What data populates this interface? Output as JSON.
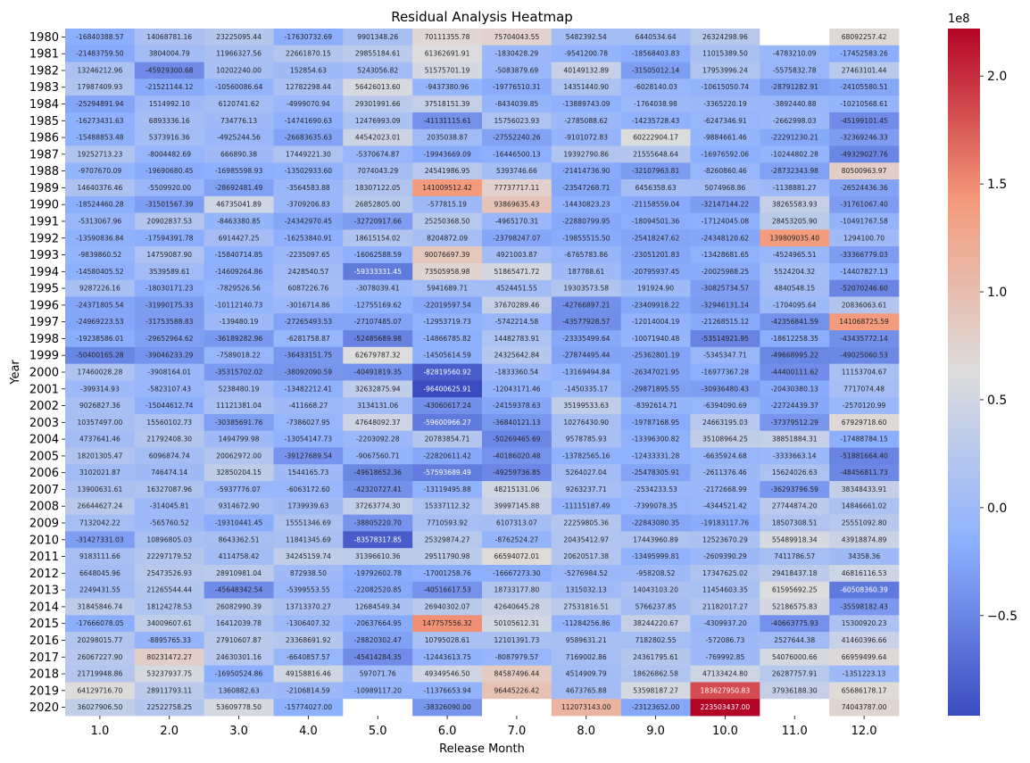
{
  "chart_data": {
    "type": "heatmap",
    "title": "Residual Analysis Heatmap",
    "xlabel": "Release Month",
    "ylabel": "Year",
    "colormap": "coolwarm",
    "color_low": "#3b4cc0",
    "color_mid": "#dddddd",
    "color_high": "#b40426",
    "missing_color": "#ffffff",
    "colorbar": {
      "multiplier": "1e8",
      "vmin": -0.9640062591,
      "vmax": 2.22,
      "ticks": [
        -0.5,
        0.0,
        0.5,
        1.0,
        1.5,
        2.0
      ],
      "tick_labels": [
        "−0.5",
        "0.0",
        "0.5",
        "1.0",
        "1.5",
        "2.0"
      ]
    },
    "columns": [
      "1.0",
      "2.0",
      "3.0",
      "4.0",
      "5.0",
      "6.0",
      "7.0",
      "8.0",
      "9.0",
      "10.0",
      "11.0",
      "12.0"
    ],
    "rows": [
      "1980",
      "1981",
      "1982",
      "1983",
      "1984",
      "1985",
      "1986",
      "1987",
      "1988",
      "1989",
      "1990",
      "1991",
      "1992",
      "1993",
      "1994",
      "1995",
      "1996",
      "1997",
      "1998",
      "1999",
      "2000",
      "2001",
      "2002",
      "2003",
      "2004",
      "2005",
      "2006",
      "2007",
      "2008",
      "2009",
      "2010",
      "2011",
      "2012",
      "2013",
      "2014",
      "2015",
      "2016",
      "2017",
      "2018",
      "2019",
      "2020"
    ],
    "values": [
      [
        -16840388.57,
        14068781.16,
        23225095.44,
        -17630732.69,
        9901348.26,
        70111355.78,
        75704043.55,
        5482392.54,
        6440534.64,
        26324298.96,
        null,
        68092257.42
      ],
      [
        -21483759.5,
        3804004.79,
        11966327.56,
        22661870.15,
        29855184.61,
        61362691.91,
        -1830428.29,
        -9541200.78,
        -18568403.83,
        11015389.5,
        -4783210.09,
        -17452583.26
      ],
      [
        13246212.96,
        -45929300.68,
        10202240.0,
        152854.63,
        5243056.82,
        51575701.19,
        -5083879.69,
        40149132.89,
        -31505012.14,
        17953996.24,
        -5575832.78,
        27463101.44
      ],
      [
        17987409.93,
        -21521144.12,
        -10560086.64,
        12782298.44,
        56426013.6,
        -9437380.96,
        -19776510.31,
        14351440.9,
        -6028140.03,
        -10615050.74,
        -28791282.91,
        -24105580.51
      ],
      [
        -25294891.94,
        1514992.1,
        6120741.62,
        -4999070.94,
        29301991.66,
        37518151.39,
        -8434039.85,
        -13889743.09,
        -1764038.98,
        -3365220.19,
        -3892440.88,
        -10210568.61
      ],
      [
        -16273431.63,
        6893336.16,
        734776.13,
        -14741690.63,
        12476993.09,
        -41131115.61,
        15756023.93,
        -2785088.62,
        -14235728.43,
        -6247346.91,
        -2662998.03,
        -45199101.45
      ],
      [
        -15488853.48,
        5373916.36,
        -4925244.56,
        -26683635.63,
        44542023.01,
        2035038.87,
        -27552240.26,
        -9101072.83,
        60222904.17,
        -9884661.46,
        -22291230.21,
        -32369246.33
      ],
      [
        19252713.23,
        -8004482.69,
        666890.38,
        17449221.3,
        -5370674.87,
        -19943669.09,
        -16446500.13,
        19392790.86,
        21555648.64,
        -16976592.06,
        -10244802.28,
        -49329027.76
      ],
      [
        -9707670.09,
        -19690680.45,
        -16985598.93,
        -13502933.6,
        7074043.29,
        24541986.95,
        5393746.66,
        -21414736.9,
        -32107963.81,
        -8260860.46,
        -28732343.98,
        80500963.97
      ],
      [
        14640376.46,
        -5509920.0,
        -28692481.49,
        -3564583.88,
        18307122.05,
        141009512.42,
        77737717.11,
        -23547268.71,
        6456358.63,
        5074968.86,
        -1138881.27,
        -26524436.36
      ],
      [
        -18524460.28,
        -31501567.39,
        46735041.89,
        -3709206.83,
        26852805.0,
        -577815.19,
        93869635.43,
        -14430823.23,
        -21158559.04,
        -32147144.22,
        38265583.93,
        -31761067.4
      ],
      [
        -5313067.96,
        20902837.53,
        -8463380.85,
        -24342970.45,
        -32720917.66,
        25250368.5,
        -4965170.31,
        -22880799.95,
        -18094501.36,
        -17124045.08,
        28453205.9,
        -10491767.58
      ],
      [
        -13590836.84,
        -17594391.78,
        6914427.25,
        -16253840.91,
        18615154.02,
        8204872.09,
        -23798247.07,
        -19855515.5,
        -25418247.62,
        -24348120.62,
        139809035.4,
        1294100.7
      ],
      [
        -9839860.52,
        14759087.9,
        -15840714.85,
        -2235097.65,
        -16062588.59,
        90076697.39,
        4921003.87,
        -6765783.86,
        -23051201.83,
        -13428681.65,
        -4524965.51,
        -33366779.03
      ],
      [
        -14580405.52,
        3539589.61,
        -14609264.86,
        2428540.57,
        -59333331.45,
        73505958.98,
        51865471.72,
        187788.61,
        -20795937.45,
        -20025988.25,
        5524204.32,
        -14407827.13
      ],
      [
        9287226.16,
        -18030171.23,
        -7829526.56,
        6087226.76,
        -3078039.41,
        5941689.71,
        4524451.55,
        19303573.58,
        191924.9,
        -30825734.57,
        4840548.15,
        -52070246.6
      ],
      [
        -24371805.54,
        -31990175.33,
        -10112140.73,
        -3016714.86,
        -12755169.62,
        -22019597.54,
        37670289.46,
        -42766897.21,
        -23409918.22,
        -32946131.14,
        -1704095.64,
        20836063.61
      ],
      [
        -24969223.53,
        -31753588.83,
        -139480.19,
        -27265493.53,
        -27107485.07,
        -12953719.73,
        -5742214.58,
        -43577928.57,
        -12014004.19,
        -21268515.12,
        -42356841.59,
        141068725.59
      ],
      [
        -19238586.01,
        -29652964.62,
        -36189282.96,
        -6281758.87,
        -52485689.98,
        -14866785.82,
        14482783.91,
        -23335499.64,
        -10071940.48,
        -53514921.95,
        -18612258.35,
        -43435772.14
      ],
      [
        -50400165.28,
        -39046233.29,
        -7589018.22,
        -36433151.75,
        62679787.32,
        -14505614.59,
        24325642.84,
        -27874495.44,
        -25362801.19,
        -5345347.71,
        -49668995.22,
        -49025060.53
      ],
      [
        17460028.28,
        -3908164.01,
        -35315702.02,
        -38092090.59,
        -40491819.35,
        -82819560.92,
        -1833360.54,
        -13169494.84,
        -26347021.95,
        -16977367.28,
        -44400111.62,
        11153704.67
      ],
      [
        -399314.93,
        -5823107.43,
        5238480.19,
        -13482212.41,
        32632875.94,
        -96400625.91,
        -12043171.46,
        -1450335.17,
        -29871895.55,
        -30936480.43,
        -20430380.13,
        7717074.48
      ],
      [
        9026827.36,
        -15044612.74,
        11121381.04,
        -411668.27,
        3134131.06,
        -43060617.24,
        -24159378.63,
        35199533.63,
        -8392614.71,
        -6394090.69,
        -22724439.37,
        -2570120.99
      ],
      [
        10357497.0,
        15560102.73,
        -30385691.76,
        -7386027.95,
        47648092.37,
        -59600966.27,
        -36840121.13,
        10276430.9,
        -19787168.95,
        24663195.03,
        -37379512.29,
        67929718.6
      ],
      [
        4737641.46,
        21792408.3,
        1494799.98,
        -13054147.73,
        -2203092.28,
        20783854.71,
        -50269465.69,
        9578785.93,
        -13396300.82,
        35108964.25,
        38851884.31,
        -17488784.15
      ],
      [
        18201305.47,
        6096874.74,
        20062972.0,
        -39127689.54,
        -9067560.71,
        -22820611.42,
        -40186020.48,
        -13782565.16,
        -12433331.28,
        -6635924.68,
        -3333663.14,
        -51881664.4
      ],
      [
        3102021.87,
        746474.14,
        32850204.15,
        1544165.73,
        -49618652.36,
        -57593689.49,
        -49259736.85,
        5264027.04,
        -25478305.91,
        -2611376.46,
        15624026.63,
        -48456811.73
      ],
      [
        13900631.61,
        16327087.96,
        -5937776.07,
        -6063172.6,
        -42320727.41,
        -13119495.88,
        48215131.06,
        9263237.71,
        -2534233.53,
        -2172668.99,
        -36293796.59,
        38348433.91
      ],
      [
        26644627.24,
        -314045.81,
        9314672.9,
        1739939.63,
        37263774.3,
        15337112.32,
        39997145.88,
        -11115187.49,
        -7399078.35,
        -4344521.42,
        27744874.2,
        14846661.02
      ],
      [
        7132042.22,
        -565760.52,
        -19310441.45,
        15551346.69,
        -38805220.7,
        7710593.92,
        6107313.07,
        22259805.36,
        -22843080.35,
        -19183117.76,
        18507308.51,
        25551092.8
      ],
      [
        -31427331.03,
        10896805.03,
        8643362.51,
        11841345.69,
        -83578317.85,
        25329874.27,
        -8762524.27,
        20435412.97,
        17443960.89,
        12523670.29,
        55489918.34,
        43918874.89
      ],
      [
        9183111.66,
        22297179.52,
        4114758.42,
        34245159.74,
        31396610.36,
        29511790.98,
        66594072.01,
        20620517.38,
        -13495999.81,
        -2609390.29,
        7411786.57,
        34358.36
      ],
      [
        6648045.96,
        25473526.93,
        28910981.04,
        872938.5,
        -19792602.78,
        -17001258.76,
        -16667273.3,
        -5276984.52,
        -958208.52,
        17347625.02,
        29418437.18,
        46816116.53
      ],
      [
        2249431.55,
        21265544.44,
        -45648342.54,
        -5399553.55,
        -22082520.85,
        -40516617.53,
        18733177.8,
        1315032.13,
        14043103.2,
        11454603.35,
        61595692.25,
        -60508360.39
      ],
      [
        31845846.74,
        18124278.53,
        26082990.39,
        13713370.27,
        12684549.34,
        26940302.07,
        42640645.28,
        27531816.51,
        5766237.85,
        21182017.27,
        52186575.83,
        -35598182.43
      ],
      [
        -17666078.05,
        34009607.61,
        16412039.78,
        -1306407.32,
        -20637664.95,
        147757556.32,
        50105612.31,
        -11284256.86,
        38244220.67,
        -4309937.2,
        -40663775.93,
        15300920.23
      ],
      [
        20298015.77,
        -8895765.33,
        27910607.87,
        23368691.92,
        -28820302.47,
        10795028.61,
        12101391.73,
        9589631.21,
        7182802.55,
        -572086.73,
        2527644.38,
        41460396.66
      ],
      [
        26067227.9,
        80231472.27,
        24630301.16,
        -6640857.57,
        -45414284.35,
        -12443613.75,
        -8087979.57,
        7169002.86,
        24361795.61,
        -769992.85,
        54076000.66,
        66959499.64
      ],
      [
        21719948.86,
        53237937.75,
        -16950524.86,
        49158816.46,
        597071.76,
        49349546.5,
        84587496.44,
        4514909.79,
        18626862.58,
        47133424.8,
        26287757.91,
        -1351223.13
      ],
      [
        64129716.7,
        28911793.11,
        1360882.63,
        -2106814.59,
        -10989117.2,
        -11376653.94,
        96445226.42,
        4673765.88,
        53598187.27,
        183627950.83,
        37936188.3,
        65686178.17
      ],
      [
        36027906.5,
        22522758.25,
        53609778.5,
        -15774027.0,
        null,
        -38326090.0,
        null,
        112073143.0,
        -23123652.0,
        223503437.0,
        null,
        74043787.0
      ]
    ]
  }
}
